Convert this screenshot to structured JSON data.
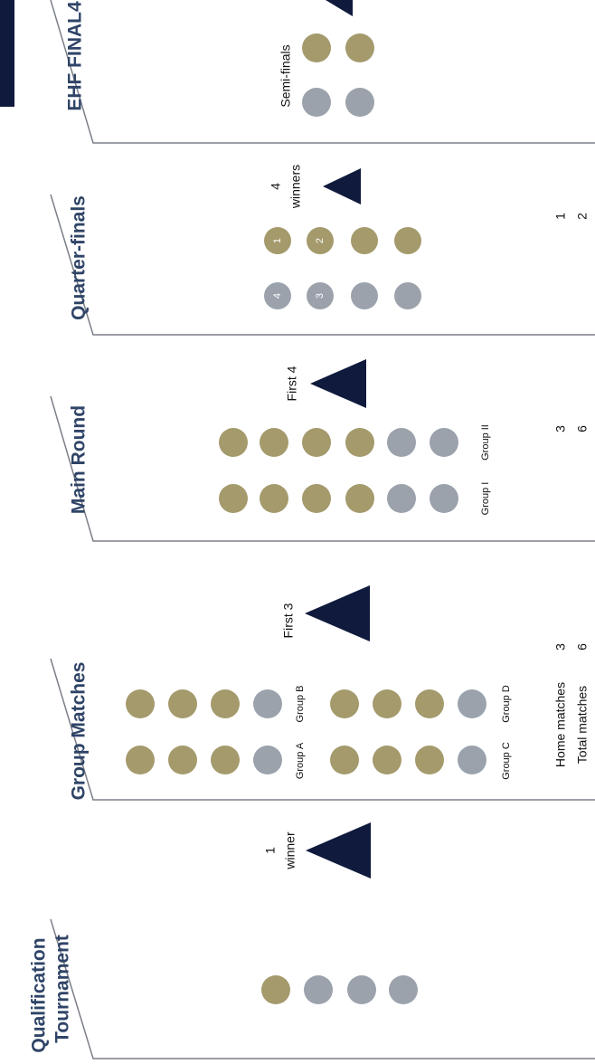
{
  "colors": {
    "gold": "#a49a6c",
    "grey": "#9ba2ac",
    "navy": "#0f1a3c",
    "heading": "#2f4467",
    "line": "#7b7f88",
    "text": "#111111",
    "circle_label": "#ffffff"
  },
  "icons": {
    "advance": "triangle-icon",
    "qualified_team": "gold-circle-icon",
    "eliminated_team": "grey-circle-icon"
  },
  "stages": [
    {
      "id": "ehf-final4",
      "heading": "EHF FINAL4",
      "teams": [
        "gold",
        "gold",
        "grey",
        "grey"
      ],
      "group_labels": [],
      "advance_label": "",
      "side_label": "Semi-finals",
      "home_matches": "",
      "total_matches": ""
    },
    {
      "id": "quarter-finals",
      "heading": "Quarter-finals",
      "teams": [
        "gold",
        "gold",
        "gold",
        "gold",
        "grey",
        "grey",
        "grey",
        "grey"
      ],
      "circle_labels": [
        "1",
        "2",
        "",
        "",
        "4",
        "3",
        "",
        ""
      ],
      "group_labels": [],
      "advance_label": "4 winners",
      "advance_label_lines": [
        "4",
        "winners"
      ],
      "home_matches": "1",
      "total_matches": "2"
    },
    {
      "id": "main-round",
      "heading": "Main Round",
      "group_labels": [
        "Group I",
        "Group II"
      ],
      "advance_label": "First 4",
      "home_matches": "3",
      "total_matches": "6"
    },
    {
      "id": "group-matches",
      "heading": "Group Matches",
      "group_labels": [
        "Group A",
        "Group B",
        "Group C",
        "Group D"
      ],
      "advance_label": "First 3",
      "home_matches": "3",
      "total_matches": "6",
      "home_matches_label": "Home matches",
      "total_matches_label": "Total matches"
    },
    {
      "id": "qualification-tournament",
      "heading": "Qualification Tournament",
      "heading_lines": [
        "Qualification",
        "Tournament"
      ],
      "advance_label": "1 winner",
      "advance_label_lines": [
        "1",
        "winner"
      ],
      "home_matches": "",
      "total_matches": ""
    }
  ]
}
